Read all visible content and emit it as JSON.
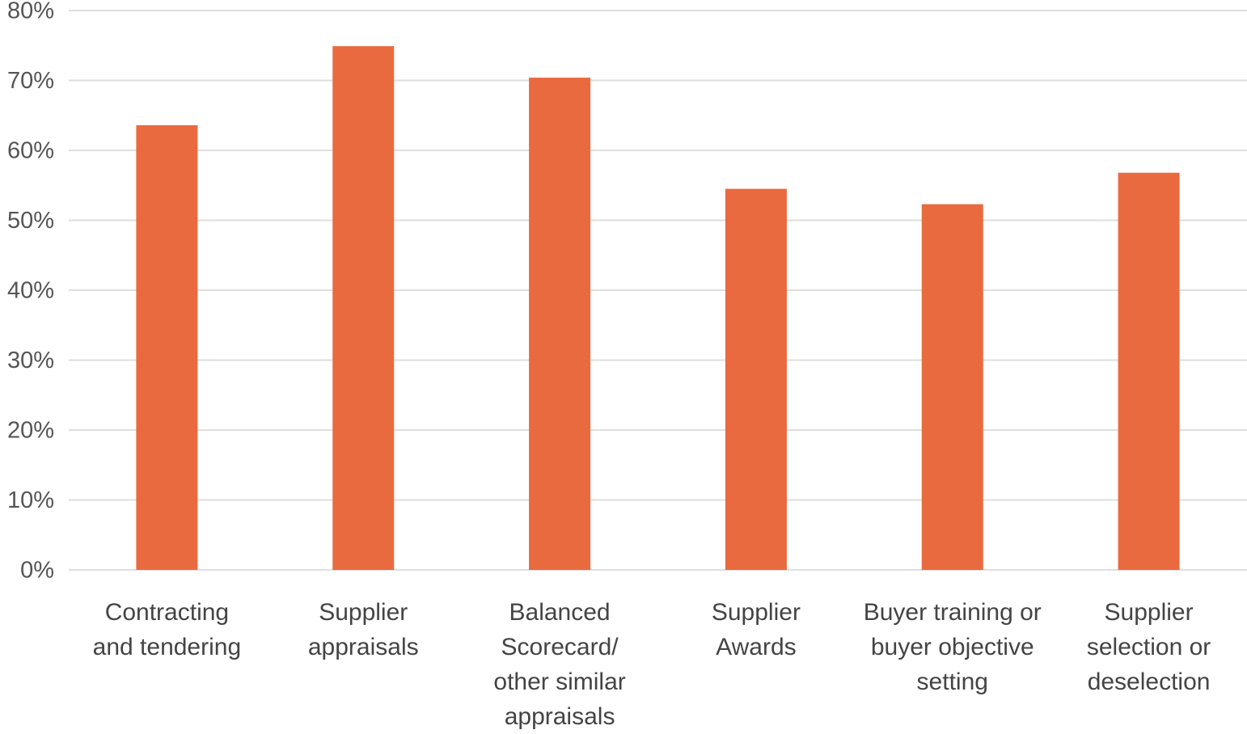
{
  "chart_data": {
    "type": "bar",
    "categories": [
      "Contracting\nand tendering",
      "Supplier\nappraisals",
      "Balanced\nScorecard/\nother similar\nappraisals",
      "Supplier\nAwards",
      "Buyer training or\nbuyer objective\nsetting",
      "Supplier\nselection or\ndeselection"
    ],
    "values": [
      63.6,
      74.9,
      70.4,
      54.5,
      52.3,
      56.8
    ],
    "color": "#e96a3f",
    "ylim": [
      0,
      80
    ],
    "yticks": [
      {
        "value": 0,
        "label": "0%"
      },
      {
        "value": 10,
        "label": "10%"
      },
      {
        "value": 20,
        "label": "20%"
      },
      {
        "value": 30,
        "label": "30%"
      },
      {
        "value": 40,
        "label": "40%"
      },
      {
        "value": 50,
        "label": "50%"
      },
      {
        "value": 60,
        "label": "60%"
      },
      {
        "value": 70,
        "label": "70%"
      },
      {
        "value": 80,
        "label": "80%"
      }
    ],
    "grid": true
  }
}
